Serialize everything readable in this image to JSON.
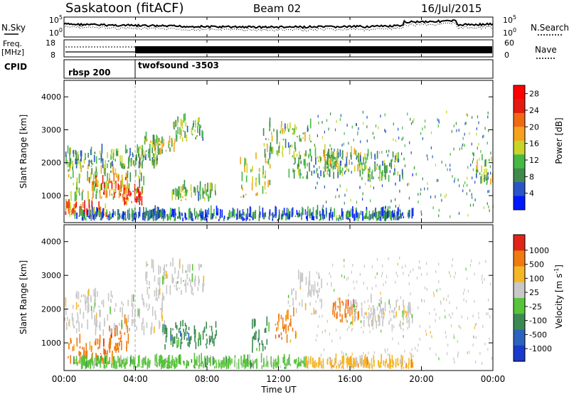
{
  "header": {
    "station": "Saskatoon (fitACF)",
    "beam": "Beam 02",
    "date": "16/Jul/2015"
  },
  "panels": {
    "nsky_label": "N.Sky",
    "nsky_ticks": [
      "10^5",
      "10^0"
    ],
    "nsearch_label": "N.Search",
    "nsearch_ticks": [
      "10^5",
      "10^0"
    ],
    "freq_label_1": "Freq.",
    "freq_label_2": "[MHz]",
    "freq_ticks": [
      "18",
      "8"
    ],
    "nave_label": "Nave",
    "nave_ticks": [
      "60",
      "0"
    ],
    "cpid_label": "CPID",
    "cpid_segments": [
      "rbsp 200",
      "twofsound -3503"
    ]
  },
  "chart_data": [
    {
      "type": "heatmap",
      "title": "",
      "xlabel": "Time UT",
      "ylabel": "Slant Range [km]",
      "x_ticks": [
        "00:00",
        "04:00",
        "08:00",
        "12:00",
        "16:00",
        "20:00",
        "00:00"
      ],
      "y_ticks": [
        "1000",
        "2000",
        "3000",
        "4000"
      ],
      "ylim": [
        180,
        4500
      ],
      "colorbar": {
        "label": "Power [dB]",
        "ticks": [
          "4",
          "8",
          "12",
          "16",
          "20",
          "24",
          "28"
        ],
        "range": [
          0,
          30
        ],
        "colors": [
          "#0018ff",
          "#2a55c8",
          "#3f8a4c",
          "#46b944",
          "#c8d42a",
          "#f5a21e",
          "#f06a14",
          "#e51a12",
          "#ff0000"
        ]
      },
      "regions": [
        {
          "t": [
            0.0,
            2.4
          ],
          "r": [
            350,
            650
          ],
          "level": 22
        },
        {
          "t": [
            0.2,
            4.5
          ],
          "r": [
            800,
            1900
          ],
          "level": 14
        },
        {
          "t": [
            1.5,
            3.6
          ],
          "r": [
            900,
            1500
          ],
          "level": 22
        },
        {
          "t": [
            3.2,
            4.4
          ],
          "r": [
            700,
            1100
          ],
          "level": 25
        },
        {
          "t": [
            0.0,
            5.2
          ],
          "r": [
            1800,
            2300
          ],
          "level": 9
        },
        {
          "t": [
            4.2,
            6.2
          ],
          "r": [
            2200,
            2700
          ],
          "level": 13
        },
        {
          "t": [
            6.0,
            7.8
          ],
          "r": [
            2600,
            3300
          ],
          "level": 11
        },
        {
          "t": [
            6.0,
            8.5
          ],
          "r": [
            800,
            1200
          ],
          "level": 12
        },
        {
          "t": [
            9.8,
            11.5
          ],
          "r": [
            900,
            2200
          ],
          "level": 14
        },
        {
          "t": [
            11.0,
            13.8
          ],
          "r": [
            2100,
            3100
          ],
          "level": 11
        },
        {
          "t": [
            12.5,
            15.8
          ],
          "r": [
            1500,
            2200
          ],
          "level": 9
        },
        {
          "t": [
            14.5,
            16.8
          ],
          "r": [
            1700,
            2300
          ],
          "level": 13
        },
        {
          "t": [
            16.5,
            19.0
          ],
          "r": [
            1400,
            2200
          ],
          "level": 10
        },
        {
          "t": [
            22.8,
            24.0
          ],
          "r": [
            1300,
            2200
          ],
          "level": 12
        },
        {
          "t": [
            0.5,
            19.5
          ],
          "r": [
            220,
            420
          ],
          "level": 6
        }
      ]
    },
    {
      "type": "heatmap",
      "title": "",
      "xlabel": "Time UT",
      "ylabel": "Slant Range [km]",
      "x_ticks": [
        "00:00",
        "04:00",
        "08:00",
        "12:00",
        "16:00",
        "20:00",
        "00:00"
      ],
      "y_ticks": [
        "1000",
        "2000",
        "3000",
        "4000"
      ],
      "ylim": [
        180,
        4500
      ],
      "colorbar": {
        "label": "Velocity [m s^-1]",
        "ticks": [
          "1000",
          "500",
          "100",
          "25",
          "-25",
          "-100",
          "-500",
          "-1000"
        ],
        "colors": [
          "#1a3acb",
          "#2c63bd",
          "#3b8a52",
          "#58c43a",
          "#c8c8c8",
          "#f6b628",
          "#f07a12",
          "#e02418"
        ]
      },
      "regions": [
        {
          "t": [
            0.2,
            3.2
          ],
          "r": [
            350,
            1000
          ],
          "class": 6
        },
        {
          "t": [
            2.5,
            3.6
          ],
          "r": [
            700,
            1600
          ],
          "class": 6
        },
        {
          "t": [
            0.0,
            5.6
          ],
          "r": [
            1200,
            2400
          ],
          "class": 4
        },
        {
          "t": [
            4.5,
            7.8
          ],
          "r": [
            2400,
            3300
          ],
          "class": 4
        },
        {
          "t": [
            5.5,
            8.5
          ],
          "r": [
            800,
            1500
          ],
          "class": 2
        },
        {
          "t": [
            10.5,
            11.5
          ],
          "r": [
            700,
            1500
          ],
          "class": 2
        },
        {
          "t": [
            11.8,
            13.0
          ],
          "r": [
            1000,
            1800
          ],
          "class": 6
        },
        {
          "t": [
            12.5,
            14.5
          ],
          "r": [
            1800,
            3000
          ],
          "class": 4
        },
        {
          "t": [
            15.0,
            16.5
          ],
          "r": [
            1600,
            2200
          ],
          "class": 6
        },
        {
          "t": [
            16.0,
            19.5
          ],
          "r": [
            1400,
            2200
          ],
          "class": 4
        },
        {
          "t": [
            0.5,
            13.5
          ],
          "r": [
            220,
            420
          ],
          "class": 3
        },
        {
          "t": [
            13.5,
            19.5
          ],
          "r": [
            220,
            400
          ],
          "class": 5
        }
      ]
    }
  ]
}
